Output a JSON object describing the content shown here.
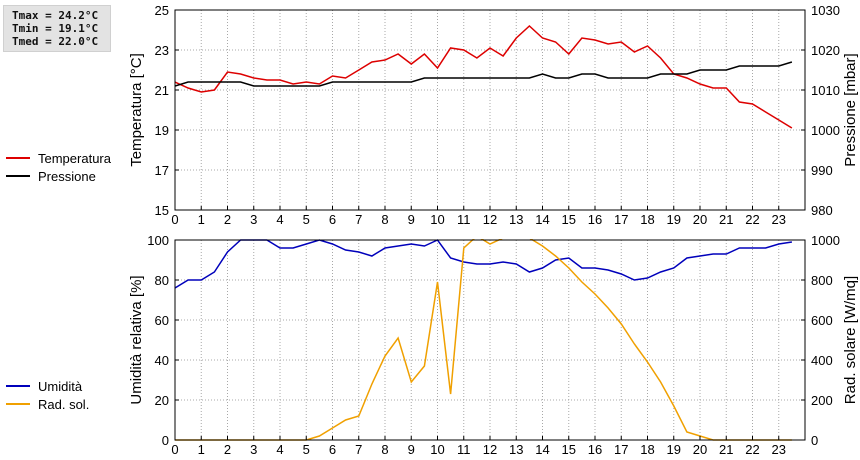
{
  "stats": {
    "tmax": "Tmax = 24.2°C",
    "tmin": "Tmin = 19.1°C",
    "tmed": "Tmed = 22.0°C"
  },
  "chart_data": [
    {
      "type": "line",
      "x_ticks": [
        "0",
        "1",
        "2",
        "3",
        "4",
        "5",
        "6",
        "7",
        "8",
        "9",
        "10",
        "11",
        "12",
        "13",
        "14",
        "15",
        "16",
        "17",
        "18",
        "19",
        "20",
        "21",
        "22",
        "23"
      ],
      "xlim": [
        0,
        24
      ],
      "ylabel_left": "Temperatura [°C]",
      "ylabel_right": "Pressione [mbar]",
      "ylim_left": [
        15,
        25
      ],
      "ylim_right": [
        980,
        1030
      ],
      "yticks_left": [
        "15",
        "17",
        "19",
        "21",
        "23",
        "25"
      ],
      "yticks_right": [
        "980",
        "990",
        "1000",
        "1010",
        "1020",
        "1030"
      ],
      "grid": true,
      "legend_position": "left",
      "series": [
        {
          "name": "Temperatura",
          "color": "#dd0000",
          "axis": "left",
          "x": [
            0,
            0.5,
            1,
            1.5,
            2,
            2.5,
            3,
            3.5,
            4,
            4.5,
            5,
            5.5,
            6,
            6.5,
            7,
            7.5,
            8,
            8.5,
            9,
            9.5,
            10,
            10.5,
            11,
            11.5,
            12,
            12.5,
            13,
            13.5,
            14,
            14.5,
            15,
            15.5,
            16,
            16.5,
            17,
            17.5,
            18,
            18.5,
            19,
            19.5,
            20,
            20.5,
            21,
            21.5,
            22,
            22.5,
            23,
            23.5
          ],
          "y": [
            21.4,
            21.1,
            20.9,
            21.0,
            21.9,
            21.8,
            21.6,
            21.5,
            21.5,
            21.3,
            21.4,
            21.3,
            21.7,
            21.6,
            22.0,
            22.4,
            22.5,
            22.8,
            22.3,
            22.8,
            22.1,
            23.1,
            23.0,
            22.6,
            23.1,
            22.7,
            23.6,
            24.2,
            23.6,
            23.4,
            22.8,
            23.6,
            23.5,
            23.3,
            23.4,
            22.9,
            23.2,
            22.6,
            21.8,
            21.6,
            21.3,
            21.1,
            21.1,
            20.4,
            20.3,
            19.9,
            19.5,
            19.1
          ]
        },
        {
          "name": "Pressione",
          "color": "#000000",
          "axis": "right",
          "x": [
            0,
            0.5,
            1,
            1.5,
            2,
            2.5,
            3,
            3.5,
            4,
            4.5,
            5,
            5.5,
            6,
            6.5,
            7,
            7.5,
            8,
            8.5,
            9,
            9.5,
            10,
            10.5,
            11,
            11.5,
            12,
            12.5,
            13,
            13.5,
            14,
            14.5,
            15,
            15.5,
            16,
            16.5,
            17,
            17.5,
            18,
            18.5,
            19,
            19.5,
            20,
            20.5,
            21,
            21.5,
            22,
            22.5,
            23,
            23.5
          ],
          "y": [
            1011,
            1012,
            1012,
            1012,
            1012,
            1012,
            1011,
            1011,
            1011,
            1011,
            1011,
            1011,
            1012,
            1012,
            1012,
            1012,
            1012,
            1012,
            1012,
            1013,
            1013,
            1013,
            1013,
            1013,
            1013,
            1013,
            1013,
            1013,
            1014,
            1013,
            1013,
            1014,
            1014,
            1013,
            1013,
            1013,
            1013,
            1014,
            1014,
            1014,
            1015,
            1015,
            1015,
            1016,
            1016,
            1016,
            1016,
            1017
          ]
        }
      ]
    },
    {
      "type": "line",
      "x_ticks": [
        "0",
        "1",
        "2",
        "3",
        "4",
        "5",
        "6",
        "7",
        "8",
        "9",
        "10",
        "11",
        "12",
        "13",
        "14",
        "15",
        "16",
        "17",
        "18",
        "19",
        "20",
        "21",
        "22",
        "23"
      ],
      "xlim": [
        0,
        24
      ],
      "ylabel_left": "Umidità relativa [%]",
      "ylabel_right": "Rad. solare [W/mq]",
      "ylim_left": [
        0,
        100
      ],
      "ylim_right": [
        0,
        1000
      ],
      "yticks_left": [
        "0",
        "20",
        "40",
        "60",
        "80",
        "100"
      ],
      "yticks_right": [
        "0",
        "200",
        "400",
        "600",
        "800",
        "1000"
      ],
      "grid": true,
      "legend_position": "left",
      "series": [
        {
          "name": "Umidità",
          "color": "#0000bb",
          "axis": "left",
          "x": [
            0,
            0.5,
            1,
            1.5,
            2,
            2.5,
            3,
            3.5,
            4,
            4.5,
            5,
            5.5,
            6,
            6.5,
            7,
            7.5,
            8,
            8.5,
            9,
            9.5,
            10,
            10.5,
            11,
            11.5,
            12,
            12.5,
            13,
            13.5,
            14,
            14.5,
            15,
            15.5,
            16,
            16.5,
            17,
            17.5,
            18,
            18.5,
            19,
            19.5,
            20,
            20.5,
            21,
            21.5,
            22,
            22.5,
            23,
            23.5
          ],
          "y": [
            76,
            80,
            80,
            84,
            94,
            100,
            100,
            100,
            96,
            96,
            98,
            100,
            98,
            95,
            94,
            92,
            96,
            97,
            98,
            97,
            100,
            91,
            89,
            88,
            88,
            89,
            88,
            84,
            86,
            90,
            91,
            86,
            86,
            85,
            83,
            80,
            81,
            84,
            86,
            91,
            92,
            93,
            93,
            96,
            96,
            96,
            98,
            99
          ]
        },
        {
          "name": "Rad. sol.",
          "color": "#f0a000",
          "axis": "right",
          "x": [
            0,
            0.5,
            1,
            1.5,
            2,
            2.5,
            3,
            3.5,
            4,
            4.5,
            5,
            5.5,
            6,
            6.5,
            7,
            7.5,
            8,
            8.5,
            9,
            9.5,
            10,
            10.5,
            11,
            11.5,
            12,
            12.5,
            13,
            13.5,
            14,
            14.5,
            15,
            15.5,
            16,
            16.5,
            17,
            17.5,
            18,
            18.5,
            19,
            19.5,
            20,
            20.5,
            21,
            21.5,
            22,
            22.5,
            23,
            23.5
          ],
          "y": [
            0,
            0,
            0,
            0,
            0,
            0,
            0,
            0,
            0,
            0,
            0,
            20,
            60,
            100,
            120,
            280,
            420,
            510,
            290,
            370,
            790,
            230,
            960,
            1020,
            980,
            1010,
            1010,
            1010,
            970,
            920,
            860,
            790,
            730,
            660,
            580,
            480,
            390,
            290,
            170,
            40,
            20,
            0,
            0,
            0,
            0,
            0,
            0,
            0
          ]
        }
      ]
    }
  ]
}
